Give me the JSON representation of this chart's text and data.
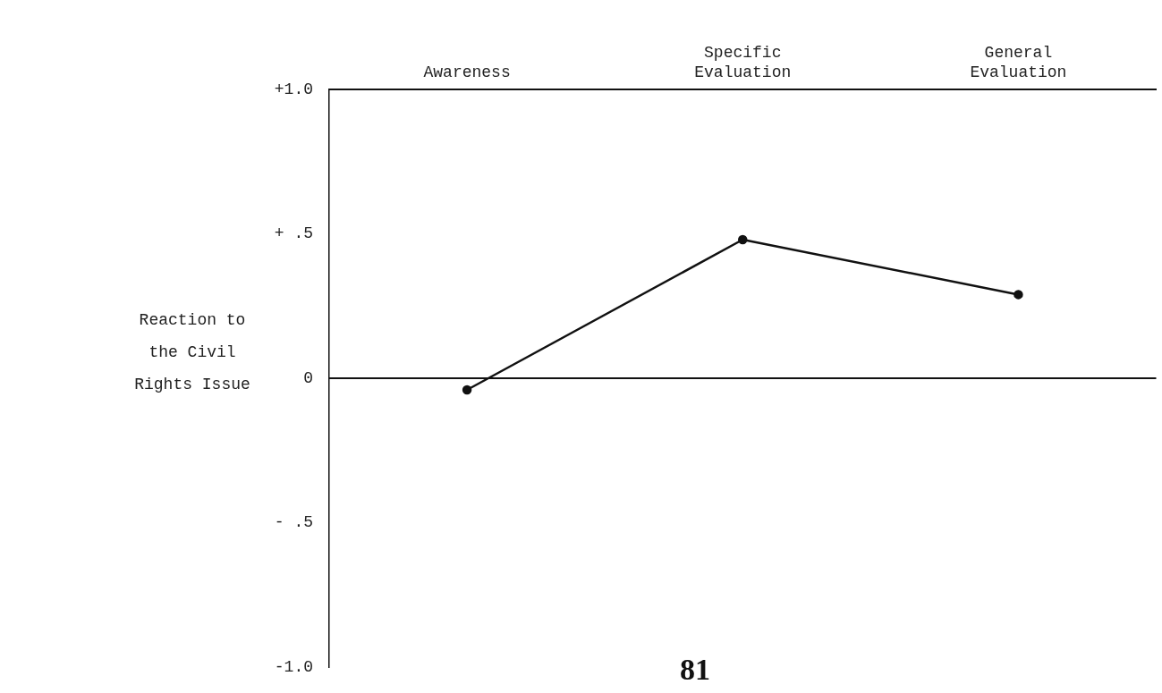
{
  "chart_data": {
    "type": "line",
    "categories": [
      "Awareness",
      "Specific Evaluation",
      "General Evaluation"
    ],
    "ylabel": "Reaction to the Civil Rights Issue",
    "series": [
      {
        "color": "#111111",
        "values": [
          -0.04,
          0.48,
          0.29
        ]
      }
    ],
    "ylim": [
      -1,
      1
    ],
    "yticks": [
      {
        "value": 1,
        "label": "+1.0"
      },
      {
        "value": 0.5,
        "label": "+ .5"
      },
      0,
      {
        "value": -0.5,
        "label": "- .5"
      },
      {
        "value": -1,
        "label": "-1.0"
      }
    ],
    "ref_lines": [
      {
        "axis": "y",
        "value": 0,
        "color": "#111111"
      }
    ],
    "grid": false,
    "legend": false,
    "marker": "circle",
    "line_style": "solid",
    "annotations": [
      "81"
    ]
  }
}
